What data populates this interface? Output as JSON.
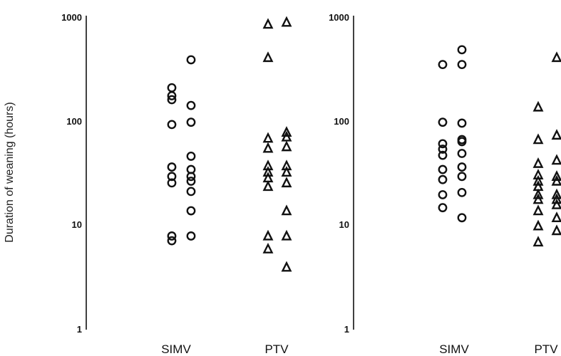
{
  "chart_data": [
    {
      "type": "scatter",
      "ylabel": "Duration of weaning (hours)",
      "yscale": "log",
      "ylim": [
        1,
        1000
      ],
      "yticks": [
        "1",
        "10",
        "100",
        "1000"
      ],
      "grid": false,
      "categories": [
        "SIMV",
        "PTV"
      ],
      "series": [
        {
          "category": "SIMV",
          "marker": "circle",
          "columns": [
            [
              215,
              180,
              165,
              95,
              37,
              30,
              26,
              8,
              7.2
            ],
            [
              400,
              145,
              100,
              47,
              35,
              30,
              27,
              21.5,
              14,
              8
            ]
          ]
        },
        {
          "category": "PTV",
          "marker": "triangle",
          "columns": [
            [
              880,
              420,
              70,
              56,
              38,
              33,
              29,
              24,
              8,
              6
            ],
            [
              920,
              80,
              72,
              58,
              38,
              33,
              26,
              14,
              8,
              4
            ]
          ]
        }
      ]
    },
    {
      "type": "scatter",
      "ylabel": "",
      "yscale": "log",
      "ylim": [
        1,
        1000
      ],
      "yticks": [
        "1",
        "10",
        "100",
        "1000"
      ],
      "grid": false,
      "categories": [
        "SIMV",
        "PTV"
      ],
      "series": [
        {
          "category": "SIMV",
          "marker": "circle",
          "columns": [
            [
              360,
              100,
              62,
              55,
              48,
              35,
              28,
              20,
              15
            ],
            [
              500,
              360,
              98,
              68,
              65,
              50,
              37,
              30,
              21,
              12
            ]
          ]
        },
        {
          "category": "PTV",
          "marker": "triangle",
          "columns": [
            [
              140,
              68,
              40,
              31,
              27,
              24,
              20,
              18,
              14,
              10,
              7
            ],
            [
              420,
              75,
              43,
              30,
              27,
              20,
              18,
              16,
              12,
              9
            ]
          ]
        }
      ]
    }
  ]
}
